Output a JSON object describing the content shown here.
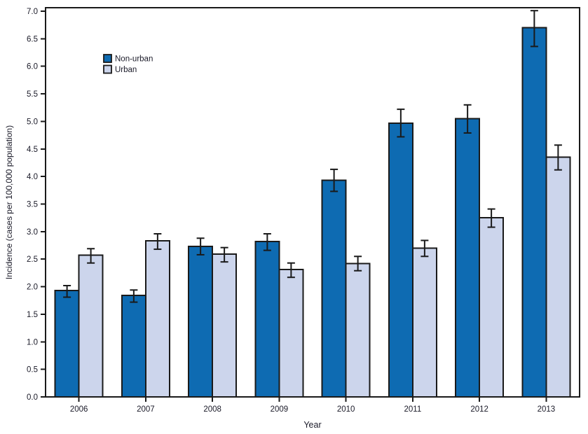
{
  "chart_data": {
    "type": "bar",
    "title": "",
    "xlabel": "Year",
    "ylabel": "Incidence (cases per 100,000 population)",
    "categories": [
      "2006",
      "2007",
      "2008",
      "2009",
      "2010",
      "2011",
      "2012",
      "2013"
    ],
    "series": [
      {
        "name": "Non-urban",
        "color": "#0e6bb2",
        "values": [
          1.93,
          1.84,
          2.73,
          2.82,
          3.93,
          4.97,
          5.05,
          6.7
        ],
        "ci_low": [
          1.81,
          1.72,
          2.58,
          2.66,
          3.73,
          4.72,
          4.79,
          6.36
        ],
        "ci_high": [
          2.02,
          1.94,
          2.88,
          2.96,
          4.13,
          5.22,
          5.3,
          7.01
        ]
      },
      {
        "name": "Urban",
        "color": "#ccd5ec",
        "values": [
          2.57,
          2.83,
          2.59,
          2.31,
          2.42,
          2.7,
          3.25,
          4.35
        ],
        "ci_low": [
          2.43,
          2.68,
          2.45,
          2.17,
          2.29,
          2.55,
          3.08,
          4.12
        ],
        "ci_high": [
          2.69,
          2.96,
          2.71,
          2.43,
          2.55,
          2.84,
          3.41,
          4.57
        ]
      }
    ],
    "ylim": [
      0,
      7
    ],
    "ytick_step": 0.5,
    "ytick_labels": [
      "0.0",
      "0.5",
      "1.0",
      "1.5",
      "2.0",
      "2.5",
      "3.0",
      "3.5",
      "4.0",
      "4.5",
      "5.0",
      "5.5",
      "6.0",
      "6.5",
      "7.0"
    ],
    "grid": false,
    "error_bars": true,
    "legend_position": "upper-left-inside",
    "colors": {
      "frame": "#1a1a1a",
      "bar_outline": "#1a1a1a",
      "error_bar": "#1a1a1a",
      "text": "#1a1a28",
      "background": "#ffffff"
    }
  }
}
